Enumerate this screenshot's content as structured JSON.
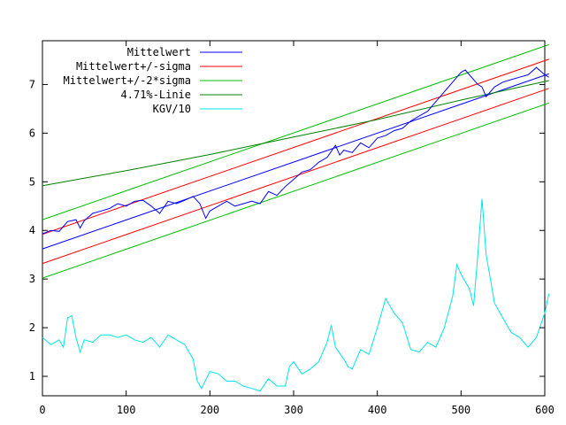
{
  "chart_data": {
    "type": "line",
    "title": "",
    "xlabel": "",
    "ylabel": "",
    "xlim": [
      0,
      600
    ],
    "ylim": [
      0.6,
      7.9
    ],
    "grid": false,
    "legend_position": "top-left",
    "x_ticks": [
      0,
      100,
      200,
      300,
      400,
      500,
      600
    ],
    "y_ticks": [
      1,
      2,
      3,
      4,
      5,
      6,
      7
    ],
    "series": [
      {
        "name": "Mittelwert",
        "color": "#0000ff",
        "kind": "data",
        "points": [
          [
            0,
            3.93
          ],
          [
            10,
            4.0
          ],
          [
            20,
            3.98
          ],
          [
            30,
            4.18
          ],
          [
            40,
            4.22
          ],
          [
            45,
            4.05
          ],
          [
            50,
            4.2
          ],
          [
            60,
            4.35
          ],
          [
            70,
            4.4
          ],
          [
            80,
            4.45
          ],
          [
            90,
            4.55
          ],
          [
            100,
            4.5
          ],
          [
            110,
            4.6
          ],
          [
            120,
            4.62
          ],
          [
            130,
            4.5
          ],
          [
            140,
            4.35
          ],
          [
            150,
            4.6
          ],
          [
            160,
            4.55
          ],
          [
            170,
            4.62
          ],
          [
            180,
            4.7
          ],
          [
            188,
            4.55
          ],
          [
            195,
            4.25
          ],
          [
            200,
            4.4
          ],
          [
            210,
            4.5
          ],
          [
            220,
            4.6
          ],
          [
            230,
            4.5
          ],
          [
            240,
            4.55
          ],
          [
            250,
            4.6
          ],
          [
            260,
            4.55
          ],
          [
            270,
            4.8
          ],
          [
            280,
            4.72
          ],
          [
            290,
            4.9
          ],
          [
            300,
            5.05
          ],
          [
            310,
            5.2
          ],
          [
            320,
            5.25
          ],
          [
            330,
            5.4
          ],
          [
            340,
            5.5
          ],
          [
            350,
            5.75
          ],
          [
            355,
            5.55
          ],
          [
            360,
            5.65
          ],
          [
            370,
            5.6
          ],
          [
            380,
            5.8
          ],
          [
            390,
            5.7
          ],
          [
            400,
            5.9
          ],
          [
            410,
            5.95
          ],
          [
            420,
            6.05
          ],
          [
            430,
            6.1
          ],
          [
            440,
            6.25
          ],
          [
            450,
            6.35
          ],
          [
            460,
            6.45
          ],
          [
            470,
            6.65
          ],
          [
            480,
            6.85
          ],
          [
            490,
            7.05
          ],
          [
            500,
            7.25
          ],
          [
            505,
            7.3
          ],
          [
            510,
            7.2
          ],
          [
            520,
            7.0
          ],
          [
            525,
            6.95
          ],
          [
            530,
            6.75
          ],
          [
            540,
            6.95
          ],
          [
            550,
            7.05
          ],
          [
            560,
            7.1
          ],
          [
            570,
            7.15
          ],
          [
            580,
            7.2
          ],
          [
            590,
            7.35
          ],
          [
            600,
            7.2
          ],
          [
            605,
            7.15
          ]
        ]
      },
      {
        "name": "Mittelwert",
        "color": "#0000ff",
        "kind": "fit",
        "points": [
          [
            0,
            3.62
          ],
          [
            605,
            7.22
          ]
        ]
      },
      {
        "name": "Mittelwert+/-sigma",
        "color": "#ff0000",
        "kind": "fit",
        "points": [
          [
            0,
            3.32
          ],
          [
            605,
            6.92
          ]
        ]
      },
      {
        "name": "Mittelwert+/-sigma",
        "color": "#ff0000",
        "kind": "fit",
        "points": [
          [
            0,
            3.92
          ],
          [
            605,
            7.52
          ]
        ]
      },
      {
        "name": "Mittelwert+/-2*sigma",
        "color": "#00c000",
        "kind": "fit",
        "points": [
          [
            0,
            3.02
          ],
          [
            605,
            6.62
          ]
        ]
      },
      {
        "name": "Mittelwert+/-2*sigma",
        "color": "#00c000",
        "kind": "fit",
        "points": [
          [
            0,
            4.22
          ],
          [
            605,
            7.82
          ]
        ]
      },
      {
        "name": "4.71%-Linie",
        "color": "#008000",
        "kind": "fit",
        "points": [
          [
            0,
            4.92
          ],
          [
            100,
            5.23
          ],
          [
            200,
            5.56
          ],
          [
            300,
            5.92
          ],
          [
            400,
            6.28
          ],
          [
            500,
            6.68
          ],
          [
            605,
            7.08
          ]
        ]
      },
      {
        "name": "KGV/10",
        "color": "#00e5e5",
        "kind": "data",
        "points": [
          [
            0,
            1.8
          ],
          [
            10,
            1.65
          ],
          [
            20,
            1.75
          ],
          [
            25,
            1.6
          ],
          [
            30,
            2.2
          ],
          [
            35,
            2.25
          ],
          [
            40,
            1.8
          ],
          [
            45,
            1.5
          ],
          [
            50,
            1.75
          ],
          [
            60,
            1.7
          ],
          [
            70,
            1.85
          ],
          [
            80,
            1.85
          ],
          [
            90,
            1.8
          ],
          [
            100,
            1.85
          ],
          [
            110,
            1.75
          ],
          [
            120,
            1.7
          ],
          [
            130,
            1.8
          ],
          [
            140,
            1.6
          ],
          [
            150,
            1.85
          ],
          [
            160,
            1.75
          ],
          [
            170,
            1.65
          ],
          [
            180,
            1.35
          ],
          [
            185,
            0.9
          ],
          [
            190,
            0.75
          ],
          [
            200,
            1.1
          ],
          [
            210,
            1.05
          ],
          [
            220,
            0.9
          ],
          [
            230,
            0.9
          ],
          [
            240,
            0.8
          ],
          [
            250,
            0.75
          ],
          [
            260,
            0.7
          ],
          [
            270,
            0.95
          ],
          [
            280,
            0.8
          ],
          [
            290,
            0.8
          ],
          [
            295,
            1.2
          ],
          [
            300,
            1.3
          ],
          [
            310,
            1.05
          ],
          [
            320,
            1.15
          ],
          [
            330,
            1.3
          ],
          [
            340,
            1.7
          ],
          [
            345,
            2.05
          ],
          [
            350,
            1.6
          ],
          [
            360,
            1.35
          ],
          [
            365,
            1.2
          ],
          [
            370,
            1.15
          ],
          [
            380,
            1.55
          ],
          [
            390,
            1.45
          ],
          [
            400,
            2.0
          ],
          [
            410,
            2.6
          ],
          [
            420,
            2.3
          ],
          [
            430,
            2.1
          ],
          [
            440,
            1.55
          ],
          [
            450,
            1.5
          ],
          [
            460,
            1.7
          ],
          [
            470,
            1.6
          ],
          [
            480,
            2.0
          ],
          [
            490,
            2.65
          ],
          [
            495,
            3.3
          ],
          [
            500,
            3.1
          ],
          [
            510,
            2.8
          ],
          [
            515,
            2.45
          ],
          [
            520,
            3.5
          ],
          [
            525,
            4.65
          ],
          [
            530,
            3.5
          ],
          [
            535,
            3.0
          ],
          [
            540,
            2.5
          ],
          [
            550,
            2.2
          ],
          [
            560,
            1.9
          ],
          [
            570,
            1.8
          ],
          [
            580,
            1.6
          ],
          [
            590,
            1.8
          ],
          [
            600,
            2.3
          ],
          [
            605,
            2.7
          ]
        ]
      }
    ],
    "legend": [
      {
        "label": "Mittelwert",
        "color": "#0000ff"
      },
      {
        "label": "Mittelwert+/-sigma",
        "color": "#ff0000"
      },
      {
        "label": "Mittelwert+/-2*sigma",
        "color": "#00c000"
      },
      {
        "label": "4.71%-Linie",
        "color": "#008000"
      },
      {
        "label": "KGV/10",
        "color": "#00e5e5"
      }
    ]
  }
}
